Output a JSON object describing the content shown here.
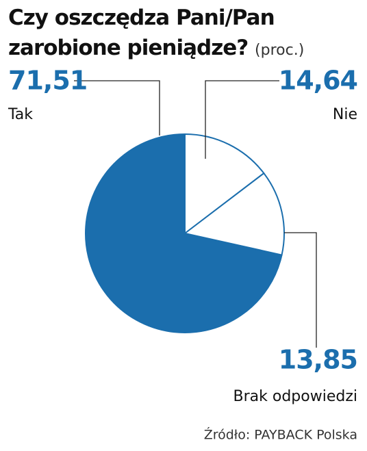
{
  "chart_data": {
    "type": "pie",
    "title": "Czy oszczędza Pani/Pan zarobione pieniądze?",
    "subtitle": "(proc.)",
    "source": "Źródło: PAYBACK Polska",
    "categories": [
      "Tak",
      "Nie",
      "Brak odpowiedzi"
    ],
    "values": [
      71.51,
      14.64,
      13.85
    ],
    "value_labels": [
      "71,51",
      "14,64",
      "13,85"
    ],
    "colors": [
      "#1b6ead",
      "#ffffff",
      "#ffffff"
    ],
    "edge_color": "#1b6ead"
  }
}
